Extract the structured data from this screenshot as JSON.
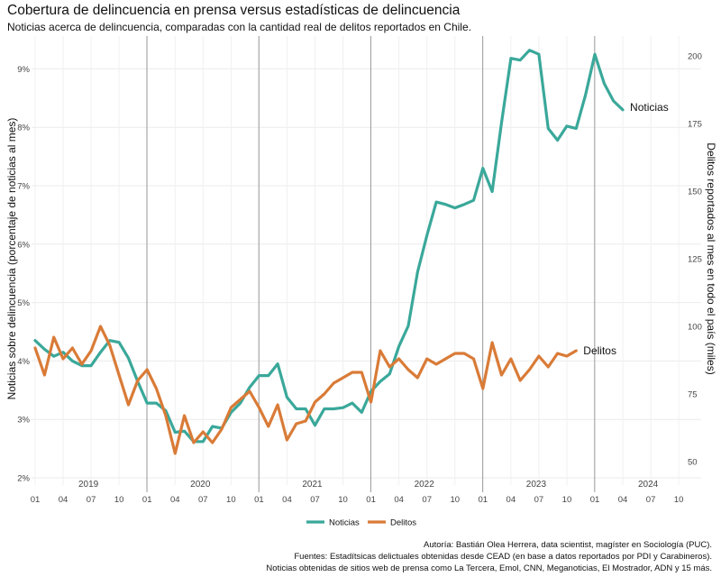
{
  "header": {
    "title": "Cobertura de delincuencia en prensa versus estadísticas de delincuencia",
    "subtitle": "Noticias acerca de delincuencia, comparadas con la cantidad real de delitos reportados en Chile."
  },
  "credits": [
    "Autoría: Bastián Olea Herrera, data scientist, magíster en Sociología (PUC).",
    "Fuentes: Estadítsicas delictuales obtenidas desde CEAD (en base a datos reportados por PDI y Carabineros).",
    "Noticias obtenidas de sitios web de prensa como La Tercera, Emol, CNN, Meganoticias, El Mostrador, ADN y 15 más."
  ],
  "chart_data": {
    "type": "line",
    "title": "Cobertura de delincuencia en prensa versus estadísticas de delincuencia",
    "subtitle": "Noticias acerca de delincuencia, comparadas con la cantidad real de delitos reportados en Chile.",
    "x_start": "2019-01",
    "xlim_months": [
      0,
      71
    ],
    "x_tick_labels": [
      "01",
      "04",
      "07",
      "10",
      "01",
      "04",
      "07",
      "10",
      "01",
      "04",
      "07",
      "10",
      "01",
      "04",
      "07",
      "10",
      "01",
      "04",
      "07",
      "10",
      "01",
      "04",
      "07",
      "10"
    ],
    "year_labels": [
      "2019",
      "2020",
      "2021",
      "2022",
      "2023",
      "2024"
    ],
    "ylabel_left": "Noticias sobre delincuencia (porcentaje de noticias al mes)",
    "ylabel_right": "Delitos reportados al mes en todo el país (miles)",
    "ylim_left": [
      2,
      9.5
    ],
    "ylim_right": [
      44,
      206
    ],
    "y_ticks_left": [
      "2%",
      "3%",
      "4%",
      "5%",
      "6%",
      "7%",
      "8%",
      "9%"
    ],
    "y_ticks_right": [
      "50",
      "75",
      "100",
      "125",
      "150",
      "175",
      "200"
    ],
    "legend": [
      "Noticias",
      "Delitos"
    ],
    "legend_position": "bottom",
    "series": [
      {
        "name": "Noticias",
        "label": "Noticias",
        "color": "#3aa89a",
        "axis": "left",
        "start_month": 0,
        "values": [
          4.35,
          4.2,
          4.08,
          4.15,
          4.0,
          3.92,
          3.92,
          4.15,
          4.35,
          4.32,
          4.05,
          3.65,
          3.28,
          3.28,
          3.15,
          2.78,
          2.8,
          2.62,
          2.62,
          2.88,
          2.85,
          3.12,
          3.28,
          3.55,
          3.75,
          3.75,
          3.95,
          3.38,
          3.18,
          3.18,
          2.9,
          3.18,
          3.18,
          3.2,
          3.28,
          3.12,
          3.48,
          3.65,
          3.78,
          4.25,
          4.6,
          5.52,
          6.15,
          6.72,
          6.68,
          6.62,
          6.68,
          6.75,
          7.3,
          6.9,
          8.08,
          9.18,
          9.15,
          9.32,
          9.25,
          7.98,
          7.78,
          8.02,
          7.98,
          8.55,
          9.25,
          8.75,
          8.45,
          8.3
        ]
      },
      {
        "name": "Delitos",
        "label": "Delitos",
        "color": "#d97b37",
        "axis": "right",
        "start_month": 0,
        "values": [
          92,
          82,
          96,
          88,
          92,
          86,
          91,
          100,
          93,
          82,
          71,
          80,
          84,
          77,
          67,
          53,
          67,
          57,
          61,
          57,
          62,
          70,
          73,
          76,
          70,
          63,
          71,
          58,
          64,
          65,
          72,
          75,
          79,
          81,
          83,
          83,
          72,
          91,
          85,
          88,
          84,
          81,
          88,
          86,
          88,
          90,
          90,
          88,
          77,
          94,
          82,
          88,
          80,
          84,
          89,
          85,
          90,
          89,
          91
        ]
      }
    ]
  }
}
